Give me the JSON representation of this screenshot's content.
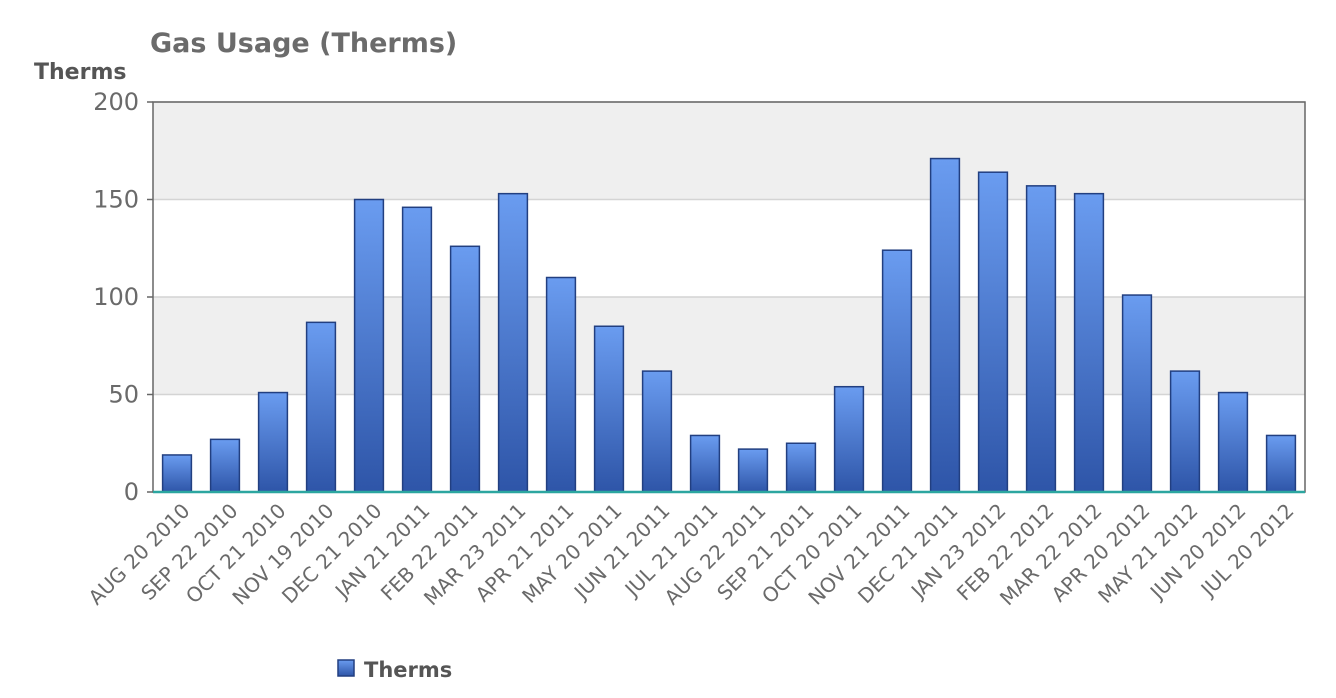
{
  "chart_data": {
    "type": "bar",
    "title": "Gas Usage (Therms)",
    "ylabel": "Therms",
    "xlabel": "",
    "ylim": [
      0,
      200
    ],
    "yticks": [
      0,
      50,
      100,
      150,
      200
    ],
    "grid": true,
    "legend_placement": "bottom-left",
    "categories": [
      "AUG 20 2010",
      "SEP 22 2010",
      "OCT 21 2010",
      "NOV 19 2010",
      "DEC 21 2010",
      "JAN 21 2011",
      "FEB 22 2011",
      "MAR 23 2011",
      "APR 21 2011",
      "MAY 20 2011",
      "JUN 21 2011",
      "JUL 21 2011",
      "AUG 22 2011",
      "SEP 21 2011",
      "OCT 20 2011",
      "NOV 21 2011",
      "DEC 21 2011",
      "JAN 23 2012",
      "FEB 22 2012",
      "MAR 22 2012",
      "APR 20 2012",
      "MAY 21 2012",
      "JUN 20 2012",
      "JUL 20 2012"
    ],
    "series": [
      {
        "name": "Therms",
        "color": "#4f7fd8",
        "values": [
          19,
          27,
          51,
          87,
          150,
          146,
          126,
          153,
          110,
          85,
          62,
          29,
          22,
          25,
          54,
          124,
          171,
          164,
          157,
          153,
          101,
          62,
          51,
          29
        ]
      }
    ]
  },
  "colors": {
    "bar_top": "#6a9cf0",
    "bar_bottom": "#2e55a8",
    "bar_stroke": "#223f80",
    "band": "#efefef",
    "grid": "#d4d4d4",
    "baseline": "#2ca6a0",
    "axis": "#666666"
  }
}
